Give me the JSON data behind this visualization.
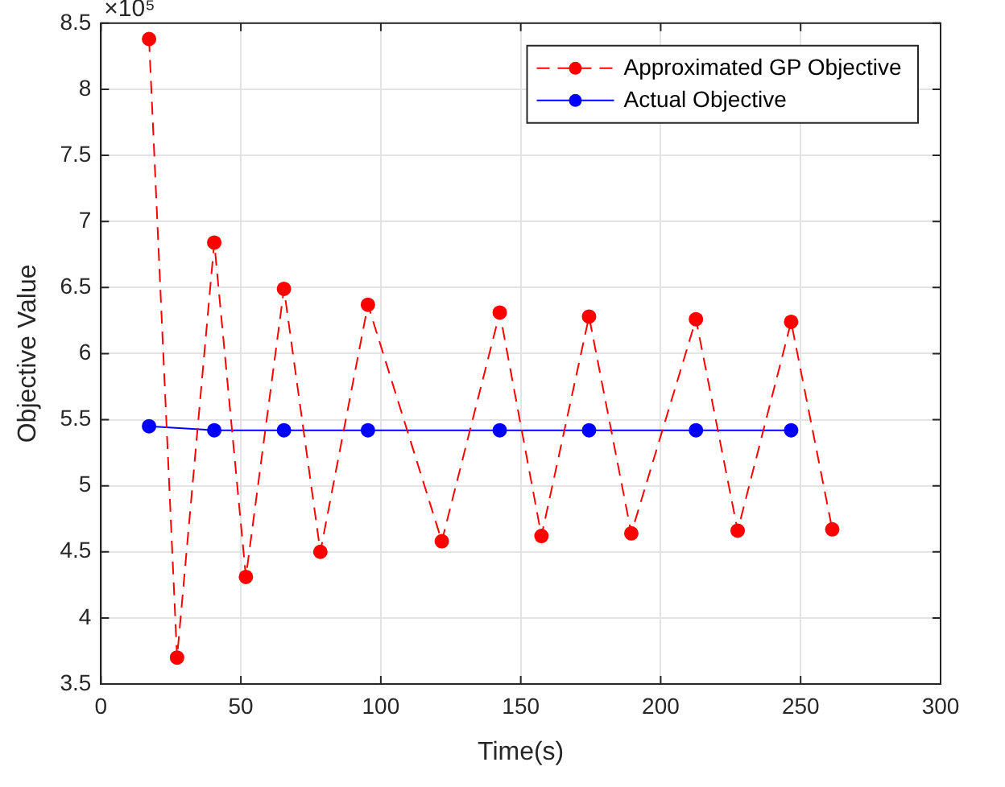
{
  "chart_data": {
    "type": "line",
    "xlabel": "Time(s)",
    "ylabel": "Objective Value",
    "annotations": [
      "×10⁵"
    ],
    "xlim": [
      0,
      300
    ],
    "xticks": [
      0,
      50,
      100,
      150,
      200,
      250,
      300
    ],
    "ylim": [
      3.5,
      8.5
    ],
    "yticks": [
      3.5,
      4,
      4.5,
      5,
      5.5,
      6,
      6.5,
      7,
      7.5,
      8,
      8.5
    ],
    "grid": true,
    "legend": "top right",
    "marker": "circle",
    "series": [
      {
        "name": "Approximated GP Objective",
        "color": "#ff0000",
        "line_style": "dashed",
        "x": [
          17.2,
          27.2,
          40.5,
          51.8,
          65.4,
          78.4,
          95.4,
          121.8,
          142.5,
          157.4,
          174.4,
          189.5,
          212.6,
          227.5,
          246.6,
          261.3
        ],
        "values": [
          8.38,
          3.7,
          6.84,
          4.31,
          6.49,
          4.5,
          6.37,
          4.58,
          6.31,
          4.62,
          6.28,
          4.64,
          6.26,
          4.66,
          6.24,
          4.67
        ]
      },
      {
        "name": "Actual Objective",
        "color": "#0000ff",
        "line_style": "solid",
        "x": [
          17.2,
          40.5,
          65.4,
          95.4,
          142.5,
          174.4,
          212.6,
          246.6
        ],
        "values": [
          5.45,
          5.42,
          5.42,
          5.42,
          5.42,
          5.42,
          5.42,
          5.42
        ]
      }
    ]
  }
}
